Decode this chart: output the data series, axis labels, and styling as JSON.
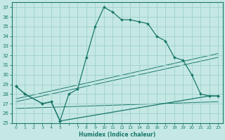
{
  "xlabel": "Humidex (Indice chaleur)",
  "bg_color": "#c5e8e5",
  "grid_color": "#9ecfca",
  "line_color": "#1a7868",
  "xlim": [
    -0.5,
    23.5
  ],
  "ylim": [
    25,
    37.5
  ],
  "xtick_vals": [
    0,
    1,
    2,
    3,
    4,
    5,
    6,
    7,
    8,
    9,
    10,
    11,
    12,
    13,
    14,
    15,
    16,
    17,
    18,
    19,
    20,
    21,
    22,
    23
  ],
  "xtick_labels": [
    "0",
    "1",
    "2",
    "3",
    "4",
    "5",
    "",
    "7",
    "8",
    "9",
    "10",
    "11",
    "12",
    "13",
    "14",
    "15",
    "16",
    "17",
    "18",
    "19",
    "20",
    "21",
    "22",
    "23"
  ],
  "ytick_vals": [
    25,
    26,
    27,
    28,
    29,
    30,
    31,
    32,
    33,
    34,
    35,
    36,
    37
  ],
  "curve_main": {
    "x": [
      0,
      1,
      3,
      4,
      5,
      6,
      7,
      8,
      9,
      10,
      11,
      12,
      13,
      14,
      15,
      16,
      17,
      18,
      19,
      20,
      21,
      22,
      23
    ],
    "y": [
      28.8,
      28.0,
      27.0,
      27.2,
      25.2,
      28.0,
      28.5,
      31.8,
      35.0,
      37.0,
      36.5,
      35.7,
      35.7,
      35.5,
      35.3,
      34.0,
      33.5,
      31.8,
      31.5,
      30.0,
      28.0,
      27.8,
      27.8
    ]
  },
  "curve_short": {
    "x": [
      0,
      1,
      3,
      4,
      5,
      22,
      23
    ],
    "y": [
      28.8,
      28.0,
      27.0,
      27.2,
      25.2,
      27.8,
      27.8
    ]
  },
  "linear_lines": [
    {
      "x": [
        0,
        23
      ],
      "y": [
        27.5,
        32.2
      ]
    },
    {
      "x": [
        0,
        23
      ],
      "y": [
        27.2,
        31.8
      ]
    },
    {
      "x": [
        0,
        23
      ],
      "y": [
        26.5,
        27.2
      ]
    }
  ]
}
